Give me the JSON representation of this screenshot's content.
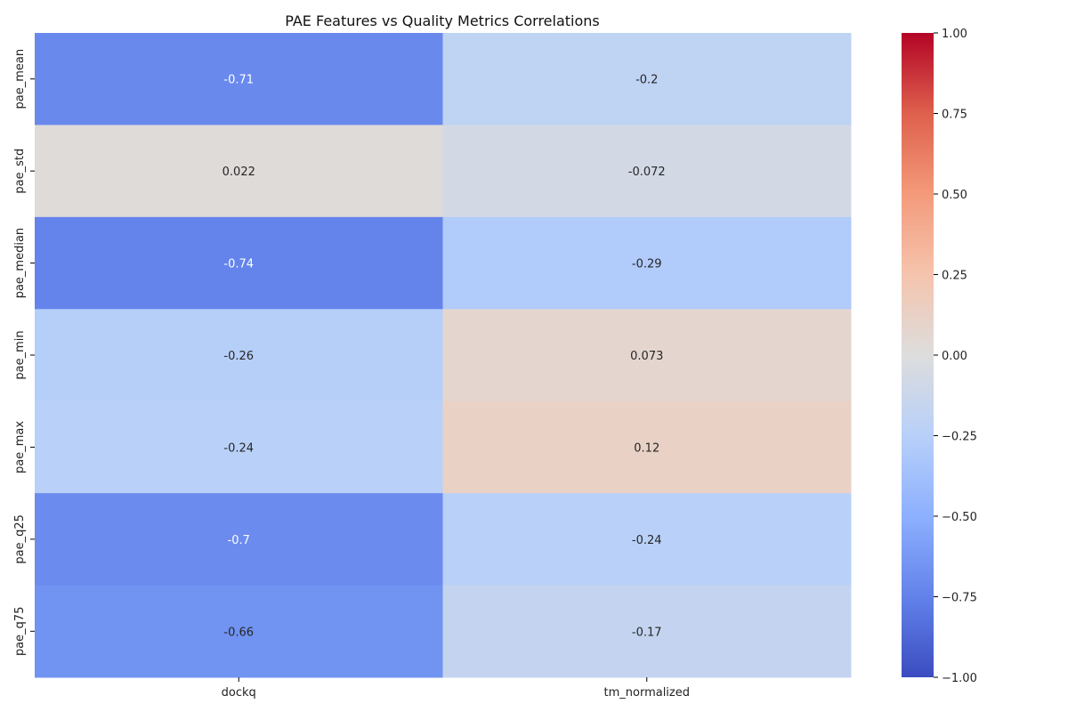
{
  "chart_data": {
    "type": "heatmap",
    "title": "PAE Features vs Quality Metrics Correlations",
    "xlabel": "",
    "ylabel": "",
    "columns": [
      "dockq",
      "tm_normalized"
    ],
    "rows": [
      "pae_mean",
      "pae_std",
      "pae_median",
      "pae_min",
      "pae_max",
      "pae_q25",
      "pae_q75"
    ],
    "values": [
      [
        -0.71,
        -0.2
      ],
      [
        0.022,
        -0.072
      ],
      [
        -0.74,
        -0.29
      ],
      [
        -0.26,
        0.073
      ],
      [
        -0.24,
        0.12
      ],
      [
        -0.7,
        -0.24
      ],
      [
        -0.66,
        -0.17
      ]
    ],
    "value_labels": [
      [
        "-0.71",
        "-0.2"
      ],
      [
        "0.022",
        "-0.072"
      ],
      [
        "-0.74",
        "-0.29"
      ],
      [
        "-0.26",
        "0.073"
      ],
      [
        "-0.24",
        "0.12"
      ],
      [
        "-0.7",
        "-0.24"
      ],
      [
        "-0.66",
        "-0.17"
      ]
    ],
    "colormap": "coolwarm",
    "vmin": -1.0,
    "vmax": 1.0,
    "colorbar_ticks": [
      1.0,
      0.75,
      0.5,
      0.25,
      0.0,
      -0.25,
      -0.5,
      -0.75,
      -1.0
    ],
    "colorbar_tick_labels": [
      "1.00",
      "0.75",
      "0.50",
      "0.25",
      "0.00",
      "−0.25",
      "−0.50",
      "−0.75",
      "−1.00"
    ],
    "legend": "colorbar-right",
    "grid": false
  }
}
